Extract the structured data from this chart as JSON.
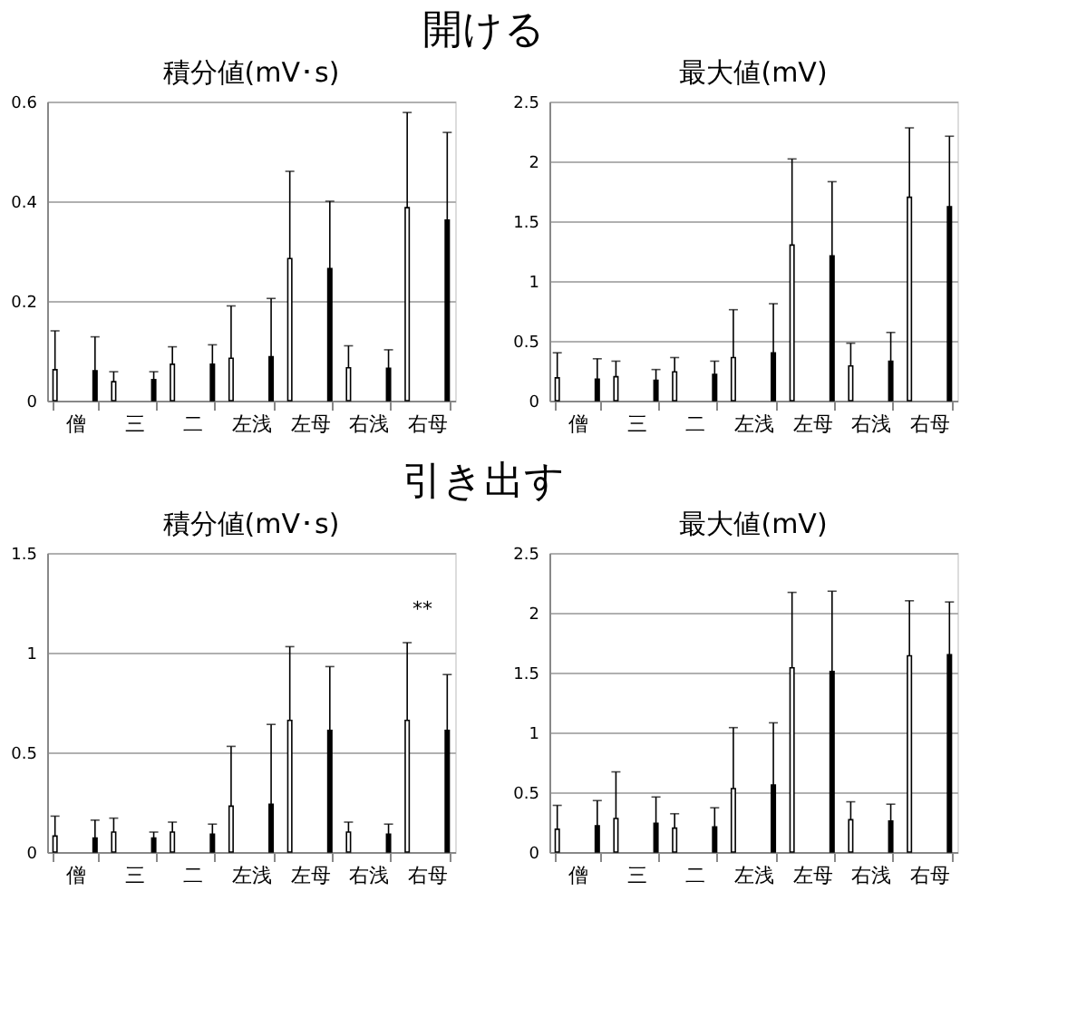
{
  "chart_data": [
    {
      "type": "bar",
      "title": "積分値(mV･s)",
      "annotations": [
        "開ける"
      ],
      "categories": [
        "僧",
        "三",
        "二",
        "左浅",
        "左母",
        "右浅",
        "右母"
      ],
      "ylim": [
        0,
        0.6
      ],
      "yticks": [
        0,
        0.2,
        0.4,
        0.6
      ],
      "grid": "y",
      "legend": false,
      "series": [
        {
          "color": "#ffffff",
          "values": [
            0.062,
            0.038,
            0.073,
            0.085,
            0.285,
            0.066,
            0.387
          ],
          "errors": [
            [
              0.062,
              0.14
            ],
            [
              0.038,
              0.058
            ],
            [
              0.073,
              0.108
            ],
            [
              0.085,
              0.19
            ],
            [
              0.285,
              0.46
            ],
            [
              0.066,
              0.11
            ],
            [
              0.387,
              0.578
            ]
          ]
        },
        {
          "color": "#000000",
          "values": [
            0.06,
            0.042,
            0.073,
            0.088,
            0.265,
            0.065,
            0.362
          ],
          "errors": [
            [
              0.06,
              0.128
            ],
            [
              0.042,
              0.058
            ],
            [
              0.073,
              0.112
            ],
            [
              0.088,
              0.205
            ],
            [
              0.265,
              0.4
            ],
            [
              0.065,
              0.102
            ],
            [
              0.362,
              0.538
            ]
          ]
        }
      ]
    },
    {
      "type": "bar",
      "title": "最大値(mV)",
      "categories": [
        "僧",
        "三",
        "二",
        "左浅",
        "左母",
        "右浅",
        "右母"
      ],
      "ylim": [
        0,
        2.5
      ],
      "yticks": [
        0,
        0.5,
        1,
        1.5,
        2,
        2.5
      ],
      "grid": "y",
      "legend": false,
      "series": [
        {
          "color": "#ffffff",
          "values": [
            0.19,
            0.2,
            0.24,
            0.36,
            1.3,
            0.29,
            1.7
          ],
          "errors": [
            [
              0.19,
              0.4
            ],
            [
              0.2,
              0.33
            ],
            [
              0.24,
              0.36
            ],
            [
              0.36,
              0.76
            ],
            [
              1.3,
              2.02
            ],
            [
              0.29,
              0.48
            ],
            [
              1.7,
              2.28
            ]
          ]
        },
        {
          "color": "#000000",
          "values": [
            0.18,
            0.17,
            0.22,
            0.4,
            1.21,
            0.33,
            1.62
          ],
          "errors": [
            [
              0.18,
              0.35
            ],
            [
              0.17,
              0.26
            ],
            [
              0.22,
              0.33
            ],
            [
              0.4,
              0.81
            ],
            [
              1.21,
              1.83
            ],
            [
              0.33,
              0.57
            ],
            [
              1.62,
              2.21
            ]
          ]
        }
      ]
    },
    {
      "type": "bar",
      "title": "積分値(mV･s)",
      "annotations": [
        "引き出す",
        "**"
      ],
      "categories": [
        "僧",
        "三",
        "二",
        "左浅",
        "左母",
        "右浅",
        "右母"
      ],
      "ylim": [
        0,
        1.5
      ],
      "yticks": [
        0,
        0.5,
        1,
        1.5
      ],
      "grid": "y",
      "legend": false,
      "series": [
        {
          "color": "#ffffff",
          "values": [
            0.08,
            0.1,
            0.1,
            0.23,
            0.66,
            0.1,
            0.66
          ],
          "errors": [
            [
              0.08,
              0.18
            ],
            [
              0.1,
              0.17
            ],
            [
              0.1,
              0.15
            ],
            [
              0.23,
              0.53
            ],
            [
              0.66,
              1.03
            ],
            [
              0.1,
              0.15
            ],
            [
              0.66,
              1.05
            ]
          ]
        },
        {
          "color": "#000000",
          "values": [
            0.07,
            0.07,
            0.09,
            0.24,
            0.61,
            0.09,
            0.61
          ],
          "errors": [
            [
              0.07,
              0.16
            ],
            [
              0.07,
              0.1
            ],
            [
              0.09,
              0.14
            ],
            [
              0.24,
              0.64
            ],
            [
              0.61,
              0.93
            ],
            [
              0.09,
              0.14
            ],
            [
              0.61,
              0.89
            ]
          ]
        }
      ]
    },
    {
      "type": "bar",
      "title": "最大値(mV)",
      "categories": [
        "僧",
        "三",
        "二",
        "左浅",
        "左母",
        "右浅",
        "右母"
      ],
      "ylim": [
        0,
        2.5
      ],
      "yticks": [
        0,
        0.5,
        1,
        1.5,
        2,
        2.5
      ],
      "grid": "y",
      "legend": false,
      "series": [
        {
          "color": "#ffffff",
          "values": [
            0.19,
            0.28,
            0.2,
            0.53,
            1.54,
            0.27,
            1.64
          ],
          "errors": [
            [
              0.19,
              0.39
            ],
            [
              0.28,
              0.67
            ],
            [
              0.2,
              0.32
            ],
            [
              0.53,
              1.04
            ],
            [
              1.54,
              2.17
            ],
            [
              0.27,
              0.42
            ],
            [
              1.64,
              2.1
            ]
          ]
        },
        {
          "color": "#000000",
          "values": [
            0.22,
            0.24,
            0.21,
            0.56,
            1.51,
            0.26,
            1.65
          ],
          "errors": [
            [
              0.22,
              0.43
            ],
            [
              0.24,
              0.46
            ],
            [
              0.21,
              0.37
            ],
            [
              0.56,
              1.08
            ],
            [
              1.51,
              2.18
            ],
            [
              0.26,
              0.4
            ],
            [
              1.65,
              2.09
            ]
          ]
        }
      ]
    }
  ]
}
